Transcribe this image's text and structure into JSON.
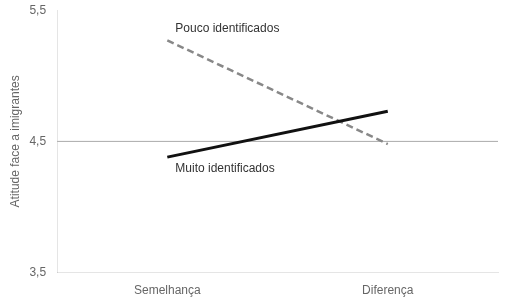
{
  "chart_data": {
    "type": "line",
    "y_label": "Atitude face a imigrantes",
    "categories": [
      "Semelhança",
      "Diferença"
    ],
    "series": [
      {
        "name": "Muito identificados",
        "color": "#111111",
        "line_style": "solid",
        "values": [
          4.38,
          4.73
        ]
      },
      {
        "name": "Pouco identificados",
        "color": "#888888",
        "line_style": "dashed",
        "values": [
          5.27,
          4.48
        ]
      }
    ],
    "hline": 4.5,
    "ylim": [
      3.5,
      5.5
    ],
    "yticks": [
      {
        "value": 3.5,
        "label": "3,5"
      },
      {
        "value": 4.5,
        "label": "4,5"
      },
      {
        "value": 5.5,
        "label": "5,5"
      }
    ],
    "grid": false
  }
}
